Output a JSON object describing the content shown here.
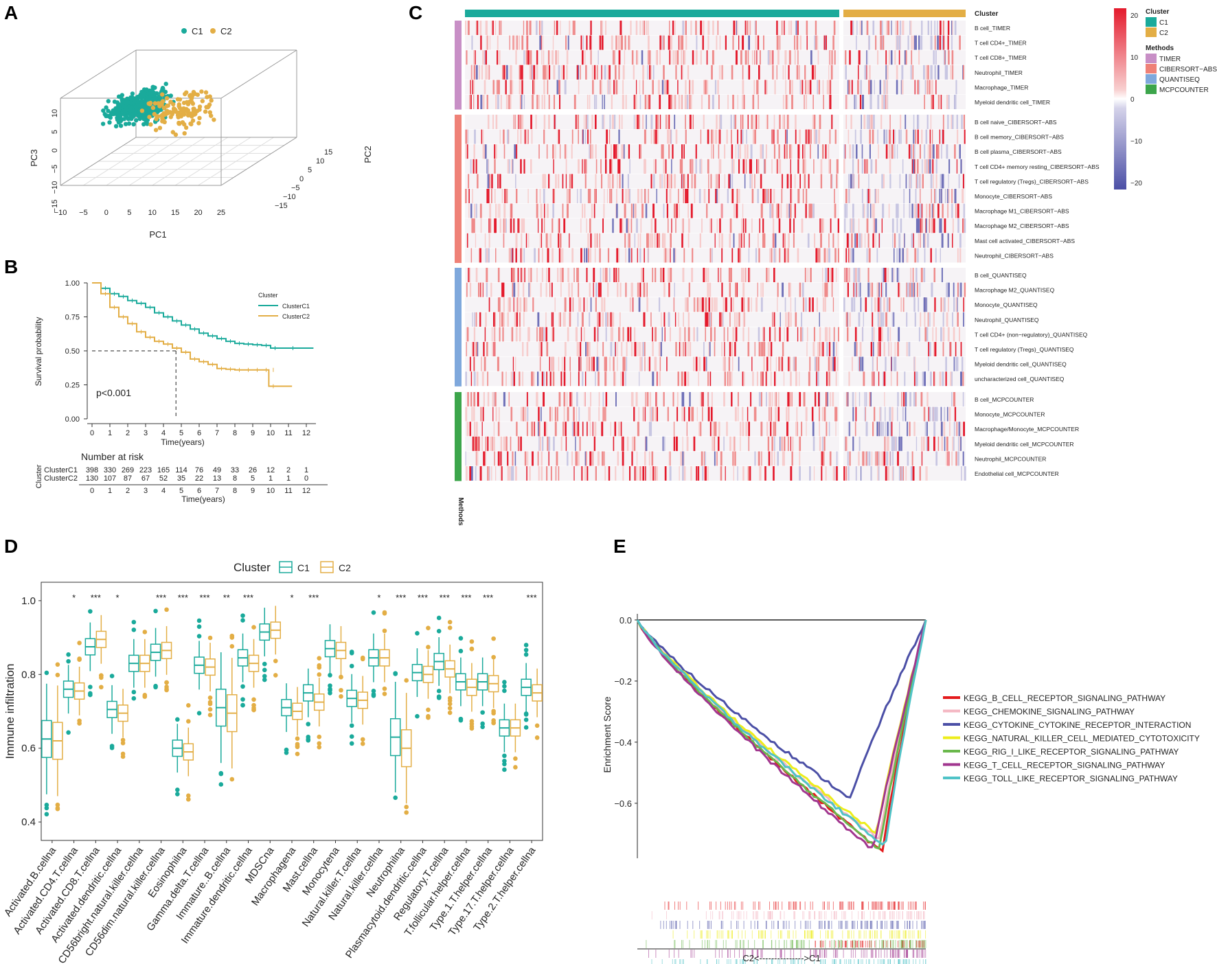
{
  "panels": {
    "a": "A",
    "b": "B",
    "c": "C",
    "d": "D",
    "e": "E"
  },
  "colors": {
    "c1": "#1aaa9b",
    "c2": "#e3ae45",
    "timer": "#c88fc6",
    "cibersort": "#ef8177",
    "quantiseq": "#7fa8dc",
    "mcpcounter": "#3ca54b",
    "high": "#e41a2c",
    "low": "#4b4fa6"
  },
  "chart_data": [
    {
      "id": "A",
      "type": "scatter",
      "legend": [
        "C1",
        "C2"
      ],
      "xlabel": "PC1",
      "ylabel": "PC3",
      "zlabel": "PC2",
      "x_ticks": [
        "−10",
        "−5",
        "0",
        "5",
        "10",
        "15",
        "20",
        "25"
      ],
      "y_ticks": [
        "−15",
        "−10",
        "−5",
        "0",
        "5",
        "10"
      ],
      "z_ticks": [
        "−15",
        "−10",
        "−5",
        "0",
        "5",
        "10",
        "15"
      ],
      "series": [
        {
          "name": "C1",
          "center_pc1": 2,
          "center_pc3": 5,
          "spread_pc1": 3.5,
          "spread_pc3": 2.4,
          "n": 398
        },
        {
          "name": "C2",
          "center_pc1": 11,
          "center_pc3": 4,
          "spread_pc1": 6,
          "spread_pc3": 3,
          "n": 130
        }
      ]
    },
    {
      "id": "B",
      "type": "line",
      "ylabel": "Survival probability",
      "xlabel": "Time(years)",
      "y_ticks": [
        "0.00",
        "0.25",
        "0.50",
        "0.75",
        "1.00"
      ],
      "x_ticks": [
        "0",
        "1",
        "2",
        "3",
        "4",
        "5",
        "6",
        "7",
        "8",
        "9",
        "10",
        "11",
        "12"
      ],
      "legend_title": "Cluster",
      "legend": [
        "ClusterC1",
        "ClusterC2"
      ],
      "pvalue": "p<0.001",
      "median_c2": 4.7,
      "series": [
        {
          "name": "ClusterC1",
          "points": [
            [
              0,
              1
            ],
            [
              0.5,
              0.96
            ],
            [
              1,
              0.92
            ],
            [
              1.5,
              0.9
            ],
            [
              2,
              0.87
            ],
            [
              2.5,
              0.85
            ],
            [
              3,
              0.82
            ],
            [
              3.5,
              0.78
            ],
            [
              4,
              0.75
            ],
            [
              4.5,
              0.72
            ],
            [
              5,
              0.69
            ],
            [
              5.5,
              0.66
            ],
            [
              6,
              0.63
            ],
            [
              6.5,
              0.61
            ],
            [
              7,
              0.59
            ],
            [
              7.5,
              0.57
            ],
            [
              8,
              0.555
            ],
            [
              8.5,
              0.55
            ],
            [
              9,
              0.545
            ],
            [
              9.5,
              0.54
            ],
            [
              10,
              0.52
            ],
            [
              11,
              0.52
            ],
            [
              12.4,
              0.52
            ]
          ]
        },
        {
          "name": "ClusterC2",
          "points": [
            [
              0,
              1
            ],
            [
              0.5,
              0.92
            ],
            [
              1,
              0.82
            ],
            [
              1.5,
              0.75
            ],
            [
              2,
              0.7
            ],
            [
              2.5,
              0.64
            ],
            [
              3,
              0.6
            ],
            [
              3.5,
              0.57
            ],
            [
              4,
              0.55
            ],
            [
              4.5,
              0.52
            ],
            [
              5,
              0.49
            ],
            [
              5.5,
              0.44
            ],
            [
              6,
              0.42
            ],
            [
              6.5,
              0.4
            ],
            [
              7,
              0.37
            ],
            [
              7.5,
              0.365
            ],
            [
              8,
              0.36
            ],
            [
              8.5,
              0.36
            ],
            [
              9,
              0.36
            ],
            [
              9.5,
              0.36
            ],
            [
              9.9,
              0.36
            ],
            [
              9.9,
              0.24
            ],
            [
              11.2,
              0.24
            ]
          ]
        }
      ],
      "risk_table": {
        "title": "Number at risk",
        "ylabel": "Cluster",
        "xlabel": "Time(years)",
        "times": [
          "0",
          "1",
          "2",
          "3",
          "4",
          "5",
          "6",
          "7",
          "8",
          "9",
          "10",
          "11",
          "12"
        ],
        "rows": [
          {
            "name": "ClusterC1",
            "values": [
              "398",
              "330",
              "269",
              "223",
              "165",
              "114",
              "76",
              "49",
              "33",
              "26",
              "12",
              "2",
              "1"
            ]
          },
          {
            "name": "ClusterC2",
            "values": [
              "130",
              "107",
              "87",
              "67",
              "52",
              "35",
              "22",
              "13",
              "8",
              "5",
              "1",
              "1",
              "0"
            ]
          }
        ]
      }
    },
    {
      "id": "C",
      "type": "heatmap",
      "top_annotation": "Cluster",
      "left_annotation": "Methods",
      "colorbar_ticks": [
        "20",
        "10",
        "0",
        "−10",
        "−20"
      ],
      "legend_cluster_title": "Cluster",
      "legend_cluster": [
        "C1",
        "C2"
      ],
      "legend_methods_title": "Methods",
      "legend_methods": [
        "TIMER",
        "CIBERSORT−ABS",
        "QUANTISEQ",
        "MCPCOUNTER"
      ],
      "groups": [
        {
          "method": "TIMER",
          "rows": [
            "B cell_TIMER",
            "T cell CD4+_TIMER",
            "T cell CD8+_TIMER",
            "Neutrophil_TIMER",
            "Macrophage_TIMER",
            "Myeloid dendritic cell_TIMER"
          ]
        },
        {
          "method": "CIBERSORT−ABS",
          "rows": [
            "B cell naive_CIBERSORT−ABS",
            "B cell memory_CIBERSORT−ABS",
            "B cell plasma_CIBERSORT−ABS",
            "T cell CD4+ memory resting_CIBERSORT−ABS",
            "T cell regulatory (Tregs)_CIBERSORT−ABS",
            "Monocyte_CIBERSORT−ABS",
            "Macrophage M1_CIBERSORT−ABS",
            "Macrophage M2_CIBERSORT−ABS",
            "Mast cell activated_CIBERSORT−ABS",
            "Neutrophil_CIBERSORT−ABS"
          ]
        },
        {
          "method": "QUANTISEQ",
          "rows": [
            "B cell_QUANTISEQ",
            "Macrophage M2_QUANTISEQ",
            "Monocyte_QUANTISEQ",
            "Neutrophil_QUANTISEQ",
            "T cell CD4+ (non−regulatory)_QUANTISEQ",
            "T cell regulatory (Tregs)_QUANTISEQ",
            "Myeloid dendritic cell_QUANTISEQ",
            "uncharacterized cell_QUANTISEQ"
          ]
        },
        {
          "method": "MCPCOUNTER",
          "rows": [
            "B cell_MCPCOUNTER",
            "Monocyte_MCPCOUNTER",
            "Macrophage/Monocyte_MCPCOUNTER",
            "Myeloid dendritic cell_MCPCOUNTER",
            "Neutrophil_MCPCOUNTER",
            "Endothelial cell_MCPCOUNTER"
          ]
        }
      ]
    },
    {
      "id": "D",
      "type": "box",
      "ylabel": "Immune infiltration",
      "legend_title": "Cluster",
      "legend": [
        "C1",
        "C2"
      ],
      "y_ticks": [
        "0.4",
        "0.6",
        "0.8",
        "1.0"
      ],
      "ylim": [
        0.35,
        1.05
      ],
      "categories": [
        "Activated.B.cellna",
        "Activated.CD4.T.cellna",
        "Activated.CD8.T.cellna",
        "Activated.dendritic.cellna",
        "CD56bright.natural.killer.cellna",
        "CD56dim.natural.killer.cellna",
        "Eosinophilna",
        "Gamma.delta.T.cellna",
        "Immature..B.cellna",
        "Immature.dendritic.cellna",
        "MDSCna",
        "Macrophagena",
        "Mast.cellna",
        "Monocytena",
        "Natural.killer.T.cellna",
        "Natural.killer.cellna",
        "Neutrophilna",
        "Plasmacytoid.dendritic.cellna",
        "Regulatory.T.cellna",
        "T.follicular.helper.cellna",
        "Type.1.T.helper.cellna",
        "Type.17.T.helper.cellna",
        "Type.2.T.helper.cellna"
      ],
      "significance": [
        "",
        "*",
        "***",
        "*",
        "",
        "***",
        "***",
        "***",
        "**",
        "***",
        "",
        "*",
        "***",
        "",
        "",
        "*",
        "***",
        "***",
        "***",
        "***",
        "***",
        "",
        "***"
      ],
      "series": [
        {
          "name": "C1",
          "median": [
            0.625,
            0.76,
            0.875,
            0.705,
            0.83,
            0.86,
            0.6,
            0.825,
            0.71,
            0.845,
            0.915,
            0.71,
            0.75,
            0.87,
            0.735,
            0.845,
            0.63,
            0.805,
            0.835,
            0.78,
            0.78,
            0.655,
            0.765
          ]
        },
        {
          "name": "C2",
          "median": [
            0.62,
            0.755,
            0.895,
            0.695,
            0.83,
            0.865,
            0.59,
            0.82,
            0.695,
            0.83,
            0.92,
            0.7,
            0.725,
            0.865,
            0.73,
            0.845,
            0.6,
            0.8,
            0.815,
            0.765,
            0.775,
            0.655,
            0.75
          ]
        }
      ]
    },
    {
      "id": "E",
      "type": "line",
      "ylabel": "Enrichment Score",
      "xlabel": "C2<--------------->C1",
      "y_ticks": [
        "0.0",
        "−0.2",
        "−0.4",
        "−0.6"
      ],
      "ylim": [
        -0.78,
        0.02
      ],
      "series": [
        {
          "name": "KEGG_B_CELL_RECEPTOR_SIGNALING_PATHWAY",
          "color": "#e41a1c",
          "min": -0.76,
          "min_at": 0.85
        },
        {
          "name": "KEGG_CHEMOKINE_SIGNALING_PATHWAY",
          "color": "#f4b6c2",
          "min": -0.72,
          "min_at": 0.84
        },
        {
          "name": "KEGG_CYTOKINE_CYTOKINE_RECEPTOR_INTERACTION",
          "color": "#4b4fa6",
          "min": -0.585,
          "min_at": 0.74
        },
        {
          "name": "KEGG_NATURAL_KILLER_CELL_MEDIATED_CYTOTOXICITY",
          "color": "#eded1a",
          "min": -0.7,
          "min_at": 0.83
        },
        {
          "name": "KEGG_RIG_I_LIKE_RECEPTOR_SIGNALING_PATHWAY",
          "color": "#6ab84c",
          "min": -0.75,
          "min_at": 0.84
        },
        {
          "name": "KEGG_T_CELL_RECEPTOR_SIGNALING_PATHWAY",
          "color": "#a1368f",
          "min": -0.755,
          "min_at": 0.82
        },
        {
          "name": "KEGG_TOLL_LIKE_RECEPTOR_SIGNALING_PATHWAY",
          "color": "#4fc3c7",
          "min": -0.74,
          "min_at": 0.86
        }
      ]
    }
  ]
}
